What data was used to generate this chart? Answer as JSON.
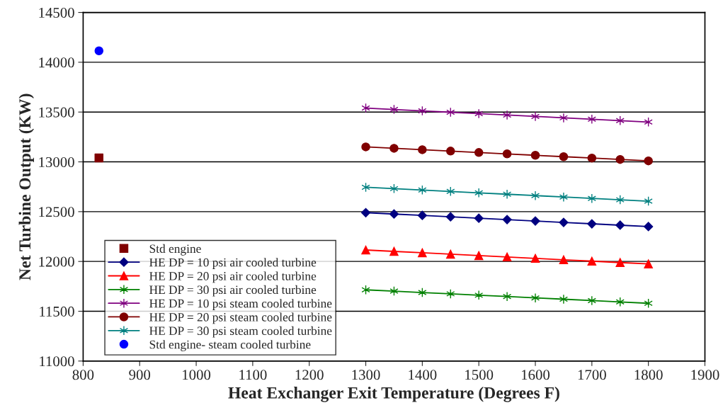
{
  "chart_data": {
    "type": "line",
    "xlabel": "Heat Exchanger Exit Temperature (Degrees F)",
    "ylabel": "Net Turbine Output (KW)",
    "xlim": [
      800,
      1900
    ],
    "xticks": [
      800,
      900,
      1000,
      1100,
      1200,
      1300,
      1400,
      1500,
      1600,
      1700,
      1800,
      1900
    ],
    "ylim": [
      11000,
      14500
    ],
    "yticks": [
      11000,
      11500,
      12000,
      12500,
      13000,
      13500,
      14000,
      14500
    ],
    "grid": "y",
    "legend": "bottom left",
    "series": [
      {
        "name": "Std engine",
        "type": "scatter",
        "marker": "square",
        "color": "#800000",
        "x": [
          828
        ],
        "values": [
          13040
        ]
      },
      {
        "name": "HE DP = 10 psi air cooled turbine",
        "marker": "diamond",
        "color": "#000080",
        "x": [
          1300,
          1350,
          1400,
          1450,
          1500,
          1550,
          1600,
          1650,
          1700,
          1750,
          1800
        ],
        "values": [
          12490,
          12476,
          12462,
          12448,
          12434,
          12420,
          12406,
          12392,
          12378,
          12364,
          12350
        ]
      },
      {
        "name": "HE DP = 20 psi air cooled turbine",
        "marker": "triangle",
        "color": "#ff0000",
        "x": [
          1300,
          1350,
          1400,
          1450,
          1500,
          1550,
          1600,
          1650,
          1700,
          1750,
          1800
        ],
        "values": [
          12115,
          12101,
          12087,
          12073,
          12059,
          12045,
          12031,
          12017,
          12003,
          11989,
          11975
        ]
      },
      {
        "name": "HE DP = 30 psi air cooled turbine",
        "marker": "cross",
        "color": "#008000",
        "x": [
          1300,
          1350,
          1400,
          1450,
          1500,
          1550,
          1600,
          1650,
          1700,
          1750,
          1800
        ],
        "values": [
          11715,
          11702,
          11688,
          11675,
          11661,
          11648,
          11634,
          11621,
          11607,
          11594,
          11580
        ]
      },
      {
        "name": "HE DP = 10 psi steam cooled turbine",
        "marker": "cross",
        "color": "#800080",
        "x": [
          1300,
          1350,
          1400,
          1450,
          1500,
          1550,
          1600,
          1650,
          1700,
          1750,
          1800
        ],
        "values": [
          13540,
          13526,
          13512,
          13498,
          13484,
          13470,
          13456,
          13442,
          13428,
          13414,
          13400
        ]
      },
      {
        "name": "HE DP = 20 psi steam cooled turbine",
        "marker": "circle",
        "color": "#800000",
        "x": [
          1300,
          1350,
          1400,
          1450,
          1500,
          1550,
          1600,
          1650,
          1700,
          1750,
          1800
        ],
        "values": [
          13150,
          13136,
          13122,
          13108,
          13094,
          13080,
          13066,
          13052,
          13038,
          13024,
          13010
        ]
      },
      {
        "name": "HE DP = 30 psi steam cooled turbine",
        "marker": "cross",
        "color": "#008080",
        "x": [
          1300,
          1350,
          1400,
          1450,
          1500,
          1550,
          1600,
          1650,
          1700,
          1750,
          1800
        ],
        "values": [
          12745,
          12731,
          12717,
          12703,
          12689,
          12675,
          12661,
          12647,
          12633,
          12619,
          12605
        ]
      },
      {
        "name": "Std engine- steam cooled turbine",
        "type": "scatter",
        "marker": "circle",
        "color": "#0000ff",
        "x": [
          828
        ],
        "values": [
          14115
        ]
      }
    ]
  }
}
